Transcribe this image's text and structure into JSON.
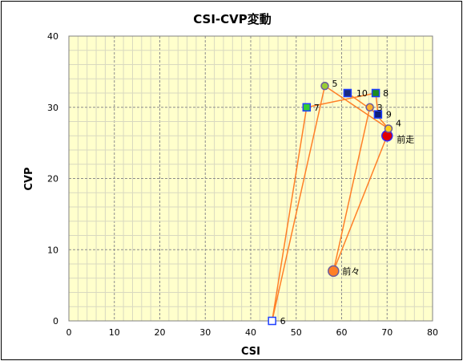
{
  "chart_data": {
    "type": "scatter",
    "title": "CSI-CVP変動",
    "xlabel": "CSI",
    "ylabel": "CVP",
    "xlim": [
      0,
      80
    ],
    "ylim": [
      0,
      40
    ],
    "x_ticks": [
      0,
      10,
      20,
      30,
      40,
      50,
      60,
      70,
      80
    ],
    "y_ticks": [
      0,
      10,
      20,
      30,
      40
    ],
    "grid": true,
    "colors": {
      "plot_bg": "#ffffcc",
      "grid": "#a6a6a6",
      "line": "#ff7f27",
      "line_dark": "#e06a10"
    },
    "points": [
      {
        "label": "前々",
        "x": 58.2,
        "y": 7.0,
        "marker": "circle",
        "fill": "#ff7f27",
        "stroke": "#6b5a9e",
        "size": "large"
      },
      {
        "label": "前走",
        "x": 70.0,
        "y": 26.0,
        "marker": "circle",
        "fill": "#e00000",
        "stroke": "#2b2bff",
        "size": "large"
      },
      {
        "label": "3",
        "x": 66.2,
        "y": 30.0,
        "marker": "circle",
        "fill": "#ffb02e",
        "stroke": "#6b5a9e",
        "size": "small"
      },
      {
        "label": "4",
        "x": 70.3,
        "y": 27.0,
        "marker": "circle",
        "fill": "#ffd21a",
        "stroke": "#6b5a9e",
        "size": "small"
      },
      {
        "label": "5",
        "x": 56.3,
        "y": 33.0,
        "marker": "circle",
        "fill": "#9acd32",
        "stroke": "#6b5a9e",
        "size": "small"
      },
      {
        "label": "6",
        "x": 44.7,
        "y": 0.0,
        "marker": "square",
        "fill": "#ffffff",
        "stroke": "#1f3fff",
        "size": "small"
      },
      {
        "label": "7",
        "x": 52.3,
        "y": 30.0,
        "marker": "square",
        "fill": "#33cc33",
        "stroke": "#1f3fff",
        "size": "small"
      },
      {
        "label": "8",
        "x": 67.5,
        "y": 32.0,
        "marker": "square",
        "fill": "#1e8c1e",
        "stroke": "#1f3fff",
        "size": "small"
      },
      {
        "label": "9",
        "x": 68.0,
        "y": 29.0,
        "marker": "square",
        "fill": "#10207a",
        "stroke": "#1f3fff",
        "size": "small"
      },
      {
        "label": "10",
        "x": 61.3,
        "y": 32.0,
        "marker": "square",
        "fill": "#1a2a80",
        "stroke": "#1f3fff",
        "size": "small"
      }
    ],
    "sequence": [
      "前走",
      "前々",
      "3",
      "4",
      "5",
      "6",
      "7",
      "8",
      "9",
      "10"
    ]
  }
}
